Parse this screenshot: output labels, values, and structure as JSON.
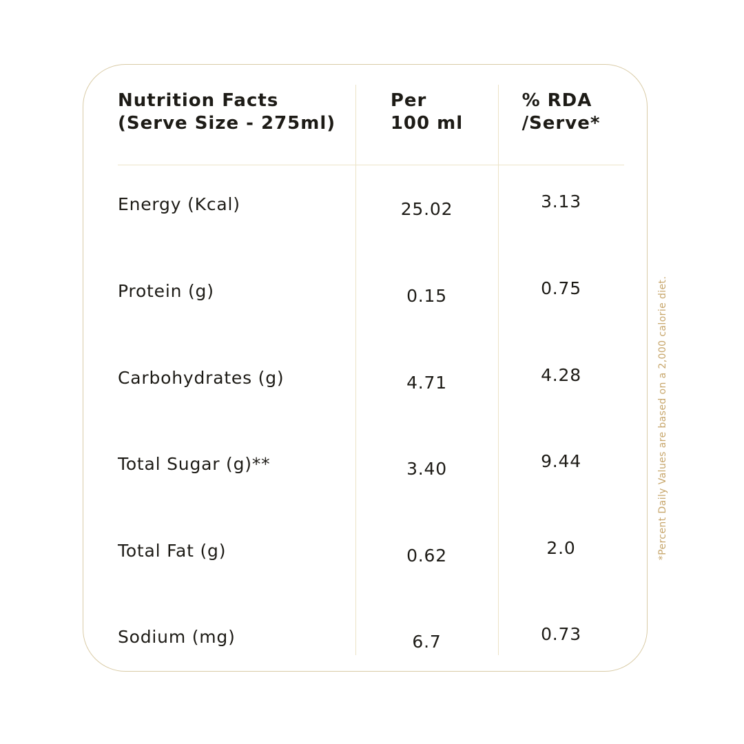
{
  "table": {
    "header": {
      "col1": {
        "line1": "Nutrition Facts",
        "line2": "(Serve Size - 275ml)"
      },
      "col2": {
        "line1": "Per",
        "line2": "100 ml"
      },
      "col3": {
        "line1": "% RDA",
        "line2": "/Serve*"
      }
    },
    "rows": [
      {
        "label": "Energy (Kcal)",
        "per_100ml": "25.02",
        "rda_per_serve": "3.13"
      },
      {
        "label": "Protein (g)",
        "per_100ml": "0.15",
        "rda_per_serve": "0.75"
      },
      {
        "label": "Carbohydrates (g)",
        "per_100ml": "4.71",
        "rda_per_serve": "4.28"
      },
      {
        "label": "Total Sugar (g)**",
        "per_100ml": "3.40",
        "rda_per_serve": "9.44"
      },
      {
        "label": "Total Fat (g)",
        "per_100ml": "0.62",
        "rda_per_serve": "2.0"
      },
      {
        "label": "Sodium (mg)",
        "per_100ml": "6.7",
        "rda_per_serve": "0.73"
      }
    ],
    "footnote": "*Percent Daily Values are based on a 2,000 calorie diet."
  },
  "colors": {
    "background": "#ffffff",
    "card_border": "#d9cba6",
    "divider": "#ece3c6",
    "text": "#1d1b16",
    "footnote": "#c7a66b"
  }
}
